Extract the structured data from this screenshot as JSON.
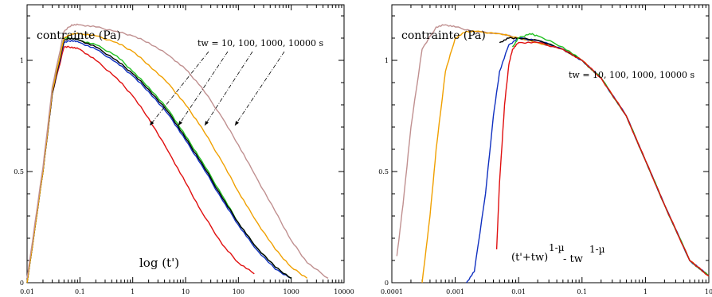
{
  "chart_data": [
    {
      "type": "line",
      "panel": "left",
      "ylabel": "contrainte (Pa)",
      "xlabel": "log (t')",
      "annotation": "tw = 10, 100, 1000, 10000 s",
      "x_scale": "log",
      "xlim": [
        0.01,
        10000
      ],
      "ylim": [
        0,
        1.25
      ],
      "x_ticks": [
        0.01,
        0.1,
        1,
        10,
        100,
        1000,
        10000
      ],
      "x_tick_labels": [
        "0.01",
        "0.1",
        "1",
        "10",
        "100",
        "1000",
        "10000"
      ],
      "y_ticks": [
        0,
        0.5,
        1
      ],
      "y_tick_labels": [
        "0",
        "0.5",
        "1"
      ],
      "grid": false,
      "series": [
        {
          "color": "#e01010",
          "x": [
            0.01,
            0.02,
            0.03,
            0.05,
            0.07,
            0.1,
            0.2,
            0.5,
            1,
            2,
            5,
            10,
            20,
            50,
            100,
            200
          ],
          "y": [
            0.0,
            0.5,
            0.85,
            1.06,
            1.06,
            1.05,
            1.0,
            0.92,
            0.84,
            0.74,
            0.58,
            0.45,
            0.32,
            0.17,
            0.09,
            0.04
          ]
        },
        {
          "color": "#1030c0",
          "x": [
            0.01,
            0.02,
            0.03,
            0.05,
            0.07,
            0.1,
            0.2,
            0.5,
            1,
            2,
            5,
            10,
            20,
            50,
            100,
            200,
            500,
            1000
          ],
          "y": [
            0.0,
            0.5,
            0.85,
            1.08,
            1.09,
            1.08,
            1.05,
            0.99,
            0.93,
            0.86,
            0.75,
            0.64,
            0.53,
            0.37,
            0.26,
            0.16,
            0.06,
            0.02
          ]
        },
        {
          "color": "#20c020",
          "x": [
            0.01,
            0.02,
            0.03,
            0.05,
            0.07,
            0.1,
            0.2,
            0.5,
            1,
            2,
            5,
            10,
            20,
            50,
            100,
            200,
            500,
            1000
          ],
          "y": [
            0.0,
            0.5,
            0.86,
            1.1,
            1.1,
            1.09,
            1.07,
            1.02,
            0.95,
            0.88,
            0.77,
            0.66,
            0.55,
            0.39,
            0.27,
            0.17,
            0.07,
            0.02
          ]
        },
        {
          "color": "#000000",
          "x": [
            0.01,
            0.02,
            0.03,
            0.05,
            0.07,
            0.1,
            0.2,
            0.5,
            1,
            2,
            5,
            10,
            20,
            50,
            100,
            200,
            500,
            1000
          ],
          "y": [
            0.0,
            0.5,
            0.85,
            1.09,
            1.1,
            1.09,
            1.06,
            1.0,
            0.94,
            0.87,
            0.76,
            0.65,
            0.54,
            0.38,
            0.27,
            0.17,
            0.07,
            0.02
          ]
        },
        {
          "color": "#f0a000",
          "x": [
            0.01,
            0.02,
            0.03,
            0.05,
            0.07,
            0.1,
            0.2,
            0.5,
            1,
            2,
            5,
            10,
            20,
            50,
            100,
            200,
            500,
            1000,
            2000
          ],
          "y": [
            0.0,
            0.5,
            0.86,
            1.1,
            1.12,
            1.12,
            1.11,
            1.08,
            1.04,
            0.98,
            0.89,
            0.8,
            0.7,
            0.54,
            0.41,
            0.29,
            0.15,
            0.07,
            0.02
          ]
        },
        {
          "color": "#c09090",
          "x": [
            0.01,
            0.02,
            0.03,
            0.05,
            0.07,
            0.1,
            0.2,
            0.5,
            1,
            2,
            5,
            10,
            20,
            50,
            100,
            200,
            500,
            1000,
            2000,
            5000
          ],
          "y": [
            0.02,
            0.52,
            0.88,
            1.13,
            1.16,
            1.16,
            1.15,
            1.13,
            1.11,
            1.08,
            1.02,
            0.96,
            0.88,
            0.74,
            0.62,
            0.49,
            0.32,
            0.19,
            0.09,
            0.02
          ]
        }
      ]
    },
    {
      "type": "line",
      "panel": "right",
      "ylabel": "contrainte (Pa)",
      "xlabel_parts": {
        "base1": "(t'+tw)",
        "exp1": "1-µ",
        "mid": " - tw",
        "exp2": "1-µ"
      },
      "annotation": "tw = 10, 100, 1000, 10000 s",
      "x_scale": "log",
      "xlim": [
        0.0001,
        10
      ],
      "ylim": [
        0,
        1.25
      ],
      "x_ticks": [
        0.0001,
        0.001,
        0.01,
        0.1,
        1,
        10
      ],
      "x_tick_labels": [
        "0.0001",
        "0.001",
        "0.01",
        "0.1",
        "1",
        "10"
      ],
      "y_ticks": [
        0,
        0.5,
        1
      ],
      "y_tick_labels": [
        "0",
        "0.5",
        "1"
      ],
      "grid": false,
      "series": [
        {
          "color": "#c09090",
          "x": [
            0.00012,
            0.00015,
            0.0002,
            0.0003,
            0.0005,
            0.0007,
            0.001,
            0.002,
            0.005,
            0.01,
            0.02,
            0.05,
            0.1,
            0.2,
            0.5,
            1,
            2,
            5,
            10
          ],
          "y": [
            0.12,
            0.35,
            0.7,
            1.05,
            1.15,
            1.16,
            1.15,
            1.13,
            1.12,
            1.1,
            1.08,
            1.05,
            1.0,
            0.92,
            0.75,
            0.55,
            0.35,
            0.1,
            0.03
          ]
        },
        {
          "color": "#f0a000",
          "x": [
            0.0003,
            0.0004,
            0.0005,
            0.0007,
            0.001,
            0.0015,
            0.002,
            0.005,
            0.01,
            0.02,
            0.05,
            0.1,
            0.2,
            0.5,
            1,
            2,
            5,
            10
          ],
          "y": [
            0.0,
            0.3,
            0.6,
            0.95,
            1.1,
            1.13,
            1.13,
            1.12,
            1.1,
            1.08,
            1.05,
            1.0,
            0.92,
            0.75,
            0.55,
            0.35,
            0.1,
            0.03
          ]
        },
        {
          "color": "#1030c0",
          "x": [
            0.0015,
            0.002,
            0.003,
            0.004,
            0.005,
            0.007,
            0.01,
            0.02,
            0.05,
            0.1,
            0.2,
            0.5,
            1,
            2,
            5,
            10
          ],
          "y": [
            0.0,
            0.05,
            0.4,
            0.75,
            0.95,
            1.07,
            1.1,
            1.09,
            1.05,
            1.0,
            0.92,
            0.75,
            0.55,
            0.35,
            0.1,
            0.03
          ]
        },
        {
          "color": "#000000",
          "x": [
            0.005,
            0.007,
            0.01,
            0.02,
            0.05,
            0.1,
            0.2,
            0.5,
            1,
            2,
            5,
            10
          ],
          "y": [
            1.08,
            1.1,
            1.1,
            1.09,
            1.05,
            1.0,
            0.92,
            0.75,
            0.55,
            0.35,
            0.1,
            0.03
          ]
        },
        {
          "color": "#20c020",
          "x": [
            0.008,
            0.01,
            0.015,
            0.02,
            0.05,
            0.1,
            0.2,
            0.5,
            1,
            2,
            5,
            10
          ],
          "y": [
            1.06,
            1.1,
            1.12,
            1.11,
            1.06,
            1.0,
            0.92,
            0.75,
            0.55,
            0.35,
            0.1,
            0.03
          ]
        },
        {
          "color": "#e01010",
          "x": [
            0.0045,
            0.005,
            0.006,
            0.007,
            0.008,
            0.01,
            0.02,
            0.05,
            0.1,
            0.2,
            0.5,
            1,
            2,
            5,
            10
          ],
          "y": [
            0.15,
            0.45,
            0.8,
            0.98,
            1.05,
            1.08,
            1.08,
            1.05,
            1.0,
            0.92,
            0.75,
            0.55,
            0.35,
            0.1,
            0.03
          ]
        }
      ]
    }
  ]
}
